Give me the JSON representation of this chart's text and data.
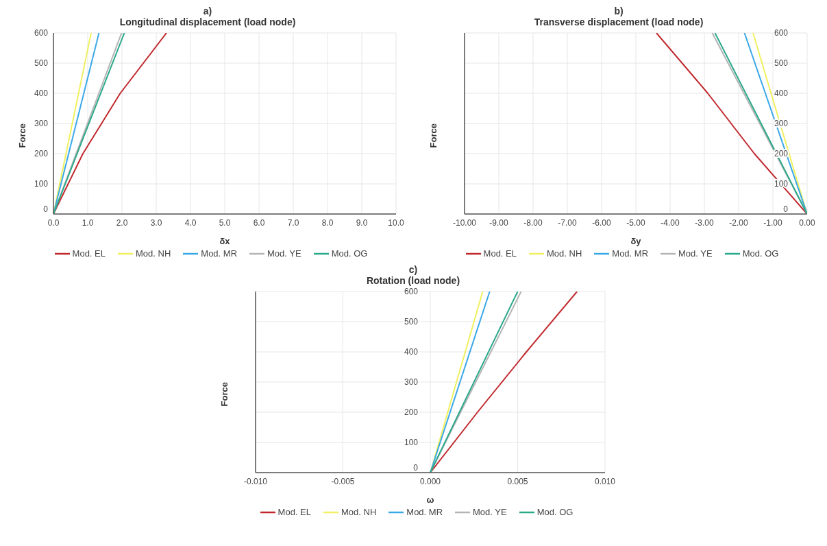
{
  "chart_data": [
    {
      "type": "line",
      "subtitle": "a)",
      "title": "Longitudinal displacement (load node)",
      "xlabel": "δx",
      "ylabel": "Force",
      "xlim": [
        0,
        10
      ],
      "xticks": [
        {
          "value": 0,
          "label": "0.0"
        },
        {
          "value": 1,
          "label": "1.0"
        },
        {
          "value": 2,
          "label": "2.0"
        },
        {
          "value": 3,
          "label": "3.0"
        },
        {
          "value": 4,
          "label": "4.0"
        },
        {
          "value": 5,
          "label": "5.0"
        },
        {
          "value": 6,
          "label": "6.0"
        },
        {
          "value": 7,
          "label": "7.0"
        },
        {
          "value": 8,
          "label": "8.0"
        },
        {
          "value": 9,
          "label": "9.0"
        },
        {
          "value": 10,
          "label": "10.0"
        }
      ],
      "ylim": [
        0,
        600
      ],
      "yticks": [
        0,
        100,
        200,
        300,
        400,
        500,
        600
      ],
      "grid": true,
      "legend": "bottom",
      "marker": "none",
      "line_style": "solid",
      "series": [
        {
          "name": "Mod. EL",
          "color": "#c0282d",
          "x": [
            0,
            0.86,
            1.95,
            3.3
          ],
          "values": [
            0,
            200,
            400,
            600
          ]
        },
        {
          "name": "Mod. NH",
          "color": "#f0f060",
          "x": [
            0,
            1.1
          ],
          "values": [
            0,
            600
          ]
        },
        {
          "name": "Mod. MR",
          "color": "#3aa8e8",
          "x": [
            0,
            1.33
          ],
          "values": [
            0,
            600
          ]
        },
        {
          "name": "Mod. YE",
          "color": "#b4b4b4",
          "x": [
            0,
            1.99
          ],
          "values": [
            0,
            600
          ]
        },
        {
          "name": "Mod. OG",
          "color": "#2aa88a",
          "x": [
            0,
            2.07
          ],
          "values": [
            0,
            600
          ]
        }
      ]
    },
    {
      "type": "line",
      "subtitle": "b)",
      "title": "Transverse displacement (load node)",
      "xlabel": "δy",
      "ylabel": "Force",
      "xlim": [
        -10,
        0
      ],
      "xticks": [
        {
          "value": -10,
          "label": "-10.00"
        },
        {
          "value": -9,
          "label": "-9.00"
        },
        {
          "value": -8,
          "label": "-8.00"
        },
        {
          "value": -7,
          "label": "-7.00"
        },
        {
          "value": -6,
          "label": "-6.00"
        },
        {
          "value": -5,
          "label": "-5.00"
        },
        {
          "value": -4,
          "label": "-4.00"
        },
        {
          "value": -3,
          "label": "-3.00"
        },
        {
          "value": -2,
          "label": "-2.00"
        },
        {
          "value": -1,
          "label": "-1.00"
        },
        {
          "value": 0,
          "label": "0.00"
        }
      ],
      "ylim": [
        0,
        600
      ],
      "yticks": [
        0,
        100,
        200,
        300,
        400,
        500,
        600
      ],
      "grid": true,
      "legend": "bottom",
      "marker": "none",
      "line_style": "solid",
      "series": [
        {
          "name": "Mod. EL",
          "color": "#c0282d",
          "x": [
            0,
            -1.54,
            -2.9,
            -4.4
          ],
          "values": [
            0,
            200,
            400,
            600
          ]
        },
        {
          "name": "Mod. NH",
          "color": "#f0f060",
          "x": [
            0,
            -1.58
          ],
          "values": [
            0,
            600
          ]
        },
        {
          "name": "Mod. MR",
          "color": "#3aa8e8",
          "x": [
            0,
            -1.83
          ],
          "values": [
            0,
            600
          ]
        },
        {
          "name": "Mod. YE",
          "color": "#b4b4b4",
          "x": [
            0,
            -2.77
          ],
          "values": [
            0,
            600
          ]
        },
        {
          "name": "Mod. OG",
          "color": "#2aa88a",
          "x": [
            0,
            -2.69
          ],
          "values": [
            0,
            600
          ]
        }
      ]
    },
    {
      "type": "line",
      "subtitle": "c)",
      "title": "Rotation (load node)",
      "xlabel": "ω",
      "ylabel": "Force",
      "xlim": [
        -0.01,
        0.01
      ],
      "xticks": [
        {
          "value": -0.01,
          "label": "-0.010"
        },
        {
          "value": -0.005,
          "label": "-0.005"
        },
        {
          "value": 0,
          "label": "0.000"
        },
        {
          "value": 0.005,
          "label": "0.005"
        },
        {
          "value": 0.01,
          "label": "0.010"
        }
      ],
      "ylim": [
        0,
        600
      ],
      "yticks": [
        0,
        100,
        200,
        300,
        400,
        500,
        600
      ],
      "grid": true,
      "legend": "bottom",
      "marker": "none",
      "line_style": "solid",
      "series": [
        {
          "name": "Mod. EL",
          "color": "#c0282d",
          "x": [
            0,
            0.0027,
            0.0055,
            0.0084
          ],
          "values": [
            0,
            200,
            400,
            600
          ]
        },
        {
          "name": "Mod. NH",
          "color": "#f0f060",
          "x": [
            0,
            0.003
          ],
          "values": [
            0,
            600
          ]
        },
        {
          "name": "Mod. MR",
          "color": "#3aa8e8",
          "x": [
            0,
            0.0034
          ],
          "values": [
            0,
            600
          ]
        },
        {
          "name": "Mod. YE",
          "color": "#b4b4b4",
          "x": [
            0,
            0.0052
          ],
          "values": [
            0,
            600
          ]
        },
        {
          "name": "Mod. OG",
          "color": "#2aa88a",
          "x": [
            0,
            0.005
          ],
          "values": [
            0,
            600
          ]
        }
      ]
    }
  ]
}
